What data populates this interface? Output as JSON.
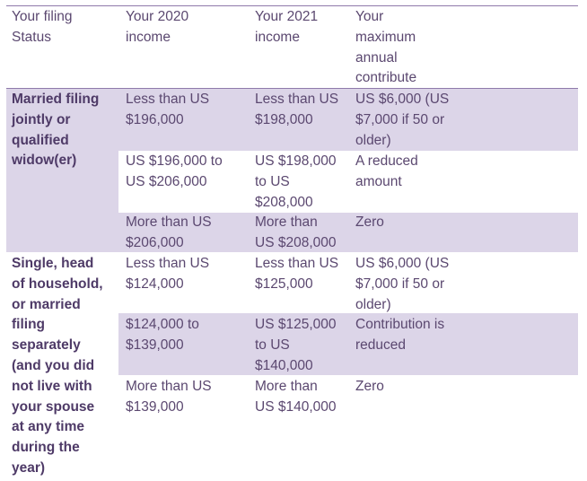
{
  "headers": {
    "status": "Your filing\nStatus",
    "income_2020": "Your 2020\nincome",
    "income_2021": "Your 2021\nincome",
    "max_contribution": "Your\nmaximum\nannual\ncontribute"
  },
  "groups": [
    {
      "status": "Married filing\njointly or\nqualified\nwidow(er)",
      "rows": [
        {
          "income_2020": "Less than US\n$196,000",
          "income_2021": "Less than US\n$198,000",
          "contribution": "US $6,000 (US\n$7,000 if 50 or\nolder)"
        },
        {
          "income_2020": "US $196,000 to\nUS $206,000",
          "income_2021": "US $198,000\nto US\n$208,000",
          "contribution": "A reduced\namount"
        },
        {
          "income_2020": "More than US\n$206,000",
          "income_2021": "More than\nUS $208,000",
          "contribution": "Zero"
        }
      ]
    },
    {
      "status": "Single, head\nof household,\nor married\nfiling\nseparately\n(and you did\nnot live with\nyour spouse\nat any time\nduring the\nyear)",
      "rows": [
        {
          "income_2020": "Less than US\n$124,000",
          "income_2021": "Less than US\n$125,000",
          "contribution": "US $6,000 (US\n$7,000 if 50 or\nolder)"
        },
        {
          "income_2020": "$124,000 to\n$139,000",
          "income_2021": "US $125,000\nto US\n$140,000",
          "contribution": "Contribution is\nreduced"
        },
        {
          "income_2020": "More than US\n$139,000",
          "income_2021": "More than\nUS $140,000",
          "contribution": "Zero"
        }
      ]
    }
  ],
  "colors": {
    "band": "#dcd5e8",
    "rule": "#8f7aab",
    "text": "#5b4870",
    "heading_text": "#4e3a67"
  }
}
